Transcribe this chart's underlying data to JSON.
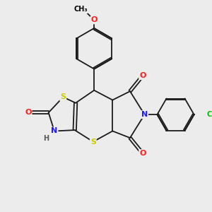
{
  "background_color": "#ececec",
  "bond_color": "#1a1a1a",
  "bond_lw": 1.3,
  "dbo": 0.055,
  "colors": {
    "C": "#000000",
    "N": "#1a1aff",
    "O": "#ff1a1a",
    "S": "#cccc00",
    "Cl": "#00bb00",
    "H": "#555555"
  },
  "fs_main": 8.0,
  "fs_small": 7.0
}
